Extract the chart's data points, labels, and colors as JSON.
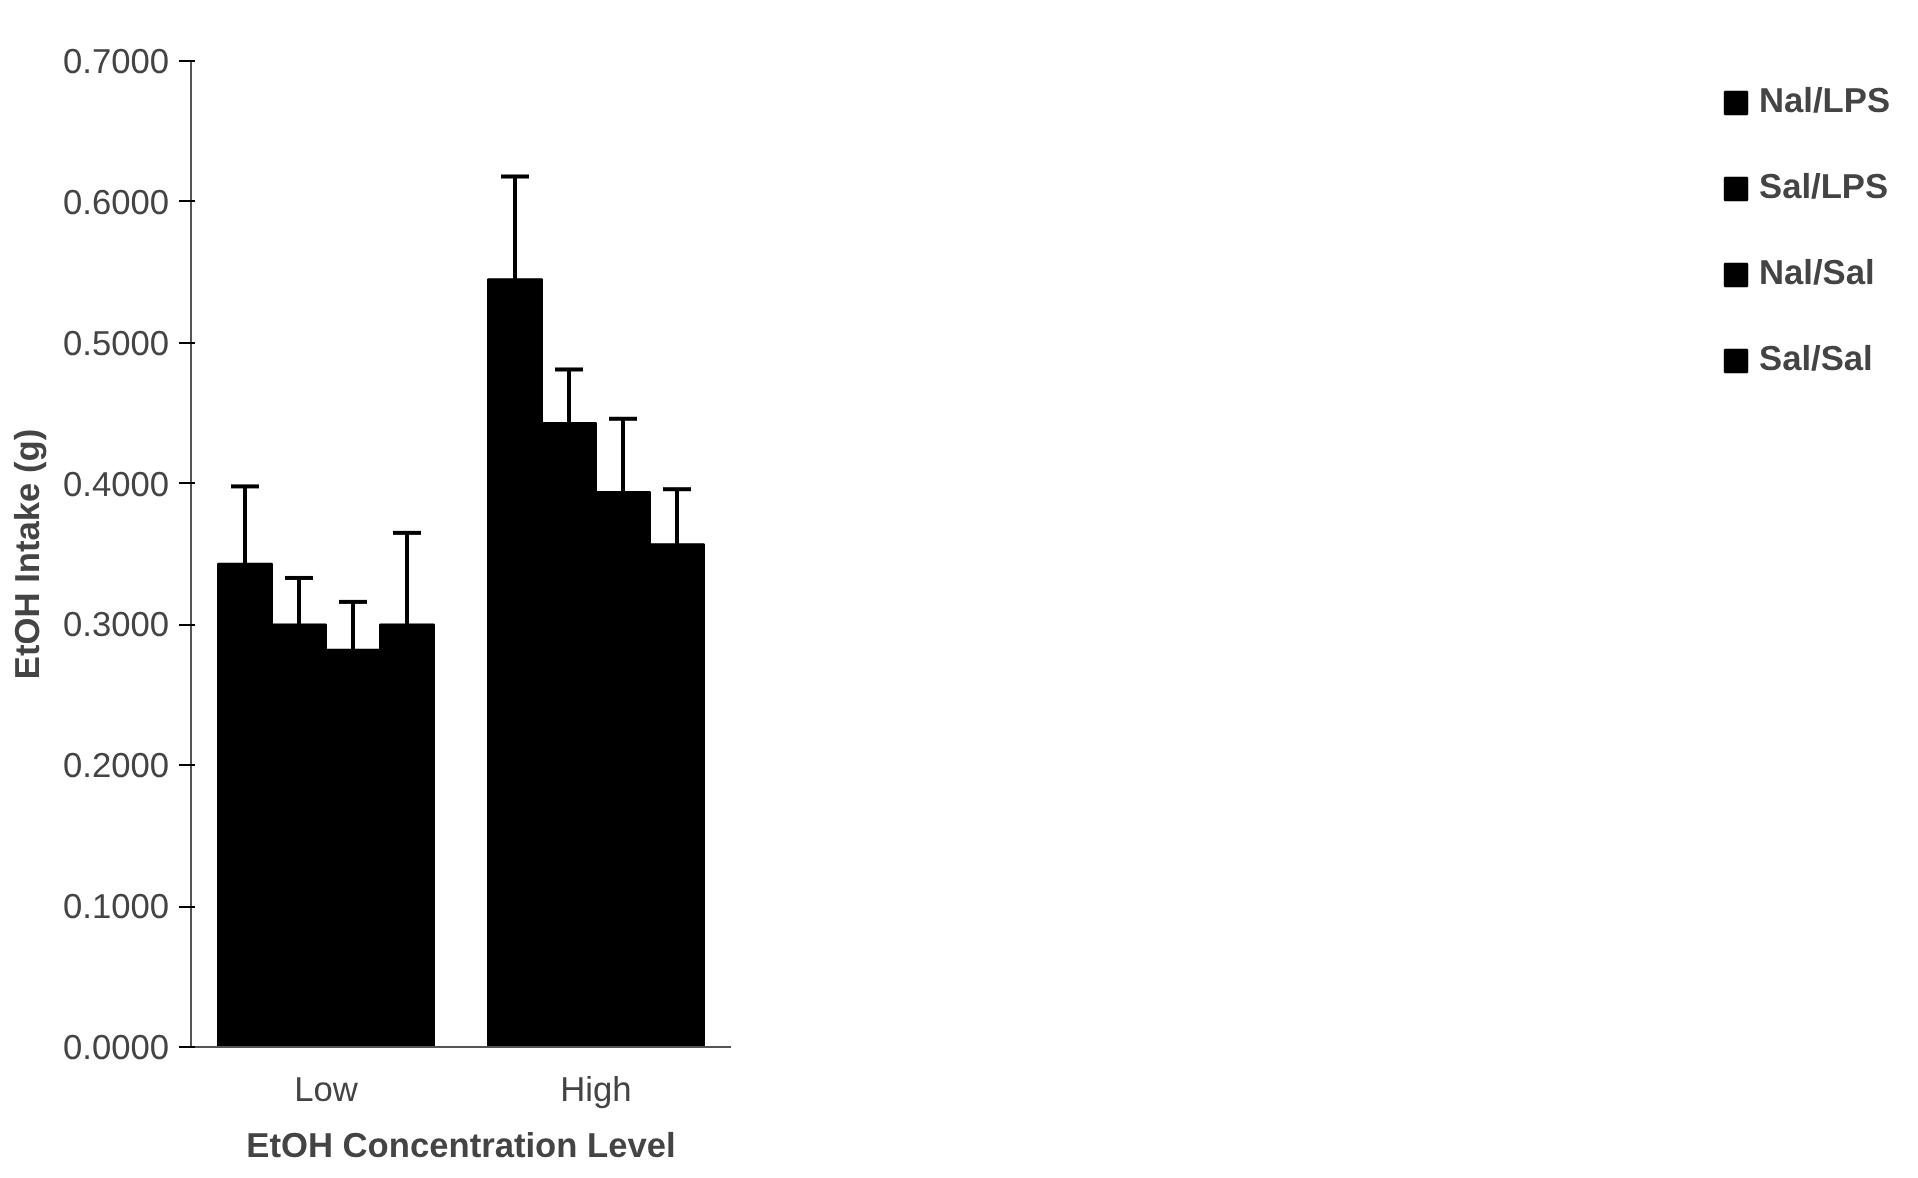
{
  "chart_data": {
    "type": "bar",
    "xlabel": "EtOH Concentration Level",
    "ylabel": "EtOH Intake (g)",
    "categories": [
      "Low",
      "High"
    ],
    "series": [
      {
        "name": "Nal/LPS",
        "color": "#000000",
        "values": [
          0.343,
          0.545
        ],
        "errors": [
          [
            0.343,
            0.398
          ],
          [
            0.545,
            0.618
          ]
        ]
      },
      {
        "name": "Sal/LPS",
        "color": "#000000",
        "values": [
          0.3,
          0.443
        ],
        "errors": [
          [
            0.3,
            0.333
          ],
          [
            0.443,
            0.481
          ]
        ]
      },
      {
        "name": "Nal/Sal",
        "color": "#000000",
        "values": [
          0.282,
          0.394
        ],
        "errors": [
          [
            0.282,
            0.316
          ],
          [
            0.394,
            0.446
          ]
        ]
      },
      {
        "name": "Sal/Sal",
        "color": "#000000",
        "values": [
          0.3,
          0.357
        ],
        "errors": [
          [
            0.3,
            0.365
          ],
          [
            0.357,
            0.396
          ]
        ]
      }
    ],
    "ylim": [
      0,
      0.7
    ],
    "yticks": [
      {
        "value": 0,
        "label": "0.0000"
      },
      {
        "value": 0.1,
        "label": "0.1000"
      },
      {
        "value": 0.2,
        "label": "0.2000"
      },
      {
        "value": 0.3,
        "label": "0.3000"
      },
      {
        "value": 0.4,
        "label": "0.4000"
      },
      {
        "value": 0.5,
        "label": "0.5000"
      },
      {
        "value": 0.6,
        "label": "0.6000"
      },
      {
        "value": 0.7,
        "label": "0.7000"
      }
    ],
    "grid": false,
    "legend": "right"
  }
}
